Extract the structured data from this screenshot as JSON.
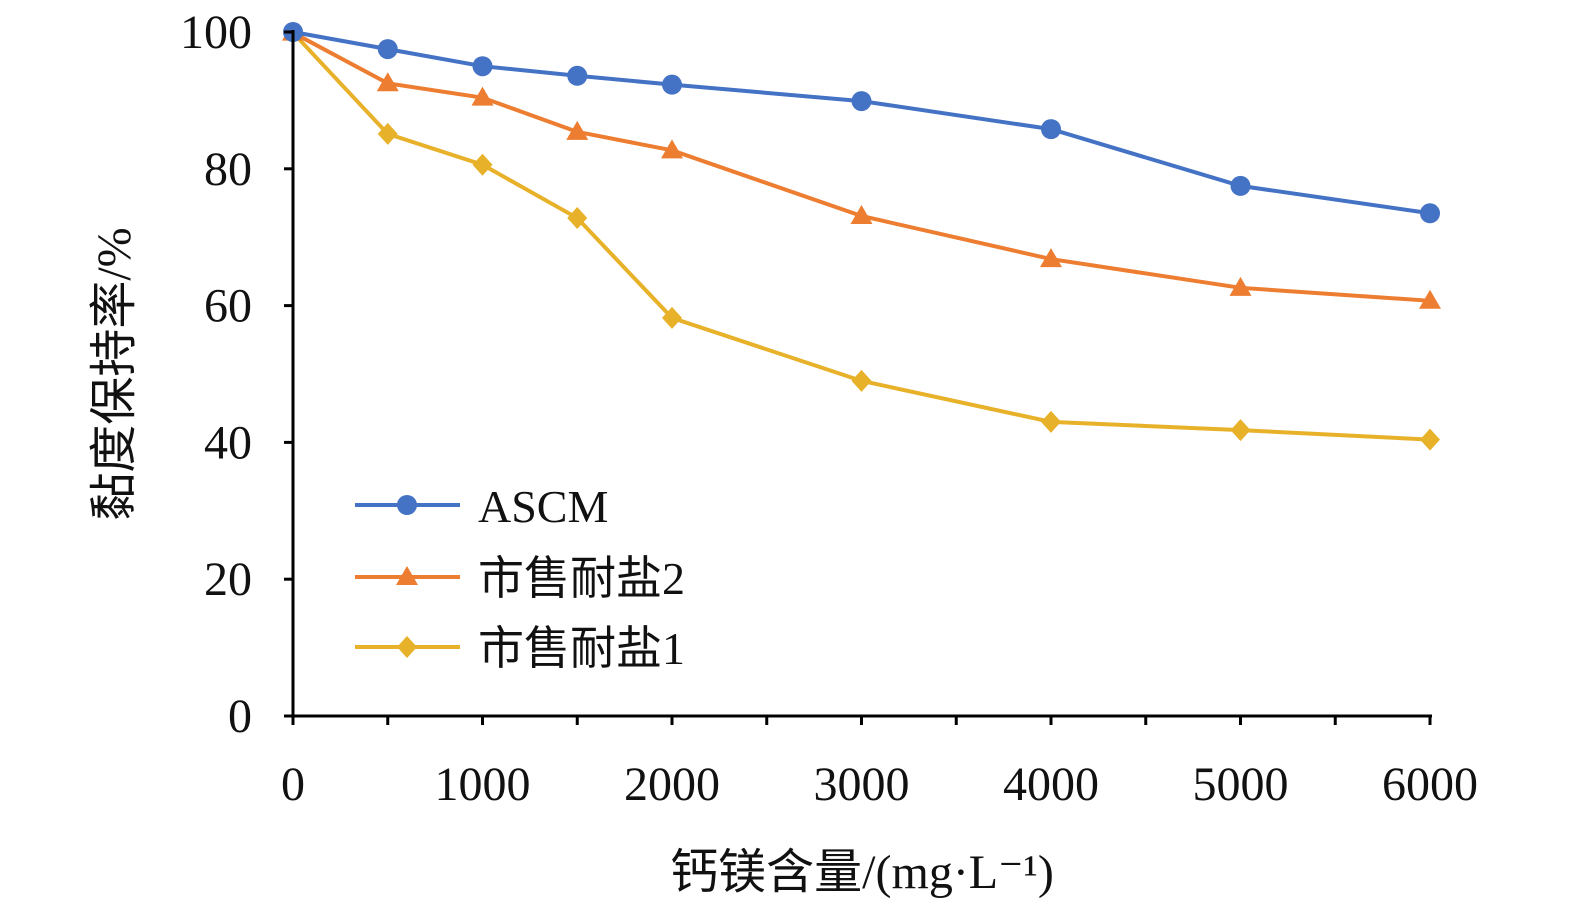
{
  "chart_data": {
    "type": "line",
    "title": "",
    "xlabel": "钙镁含量/(mg·L⁻¹)",
    "ylabel": "黏度保持率/%",
    "xlim": [
      0,
      6000
    ],
    "ylim": [
      0,
      100
    ],
    "xticks": [
      "0",
      "1000",
      "2000",
      "3000",
      "4000",
      "5000",
      "6000"
    ],
    "xtick_values": [
      0,
      1000,
      2000,
      3000,
      4000,
      5000,
      6000
    ],
    "yticks": [
      "0",
      "20",
      "40",
      "60",
      "80",
      "100"
    ],
    "ytick_values": [
      0,
      20,
      40,
      60,
      80,
      100
    ],
    "grid": false,
    "legend_position": "bottom-left",
    "x": [
      0,
      500,
      1000,
      1500,
      2000,
      3000,
      4000,
      5000,
      6000
    ],
    "series": [
      {
        "name": "ASCM",
        "color": "#4472C4",
        "marker": "circle",
        "values": [
          100,
          97.5,
          95.0,
          93.6,
          92.3,
          89.9,
          85.8,
          77.5,
          73.5
        ]
      },
      {
        "name": "市售耐盐2",
        "color": "#ED7D31",
        "marker": "triangle",
        "values": [
          99.9,
          92.5,
          90.4,
          85.4,
          82.7,
          73.1,
          66.8,
          62.6,
          60.7
        ]
      },
      {
        "name": "市售耐盐1",
        "color": "#E8B12A",
        "marker": "diamond",
        "values": [
          99.9,
          85.1,
          80.6,
          72.8,
          58.2,
          49.0,
          43.0,
          41.8,
          40.4
        ]
      }
    ]
  }
}
